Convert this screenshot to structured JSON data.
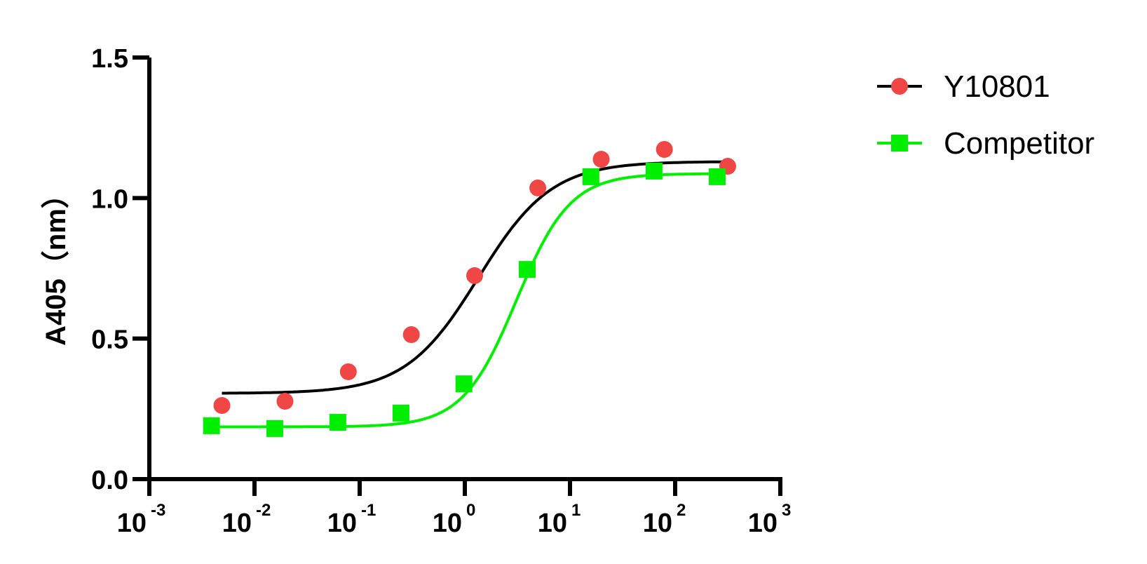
{
  "chart_data": {
    "type": "scatter",
    "subtype": "dose-response (4PL sigmoidal fit)",
    "title": "",
    "xlabel": "",
    "ylabel": "A405（nm）",
    "xscale": "log",
    "xlim": [
      0.001,
      1000
    ],
    "ylim": [
      0,
      1.5
    ],
    "x_ticks": [
      {
        "base": "10",
        "exp": "-3",
        "value": 0.001
      },
      {
        "base": "10",
        "exp": "-2",
        "value": 0.01
      },
      {
        "base": "10",
        "exp": "-1",
        "value": 0.1
      },
      {
        "base": "10",
        "exp": "0",
        "value": 1
      },
      {
        "base": "10",
        "exp": "1",
        "value": 10
      },
      {
        "base": "10",
        "exp": "2",
        "value": 100
      },
      {
        "base": "10",
        "exp": "3",
        "value": 1000
      }
    ],
    "y_ticks": [
      {
        "label": "0.0",
        "value": 0.0
      },
      {
        "label": "0.5",
        "value": 0.5
      },
      {
        "label": "1.0",
        "value": 1.0
      },
      {
        "label": "1.5",
        "value": 1.5
      }
    ],
    "grid": false,
    "legend_position": "top-right outside",
    "series": [
      {
        "name": "Y10801",
        "marker": "circle",
        "marker_color": "#f04646",
        "line_color": "#000000",
        "x": [
          0.0049,
          0.0195,
          0.078,
          0.31,
          1.24,
          4.94,
          19.8,
          79,
          316
        ],
        "y": [
          0.262,
          0.277,
          0.382,
          0.514,
          0.724,
          1.036,
          1.138,
          1.173,
          1.113
        ],
        "fit": {
          "bottom": 0.305,
          "top": 1.13,
          "ec50": 1.35,
          "hill": 1.25
        }
      },
      {
        "name": "Competitor",
        "marker": "square",
        "marker_color": "#00ee00",
        "line_color": "#00ee00",
        "x": [
          0.0039,
          0.0156,
          0.062,
          0.247,
          0.98,
          3.92,
          15.8,
          63,
          251
        ],
        "y": [
          0.19,
          0.18,
          0.202,
          0.235,
          0.339,
          0.746,
          1.076,
          1.096,
          1.076
        ],
        "fit": {
          "bottom": 0.186,
          "top": 1.087,
          "ec50": 3.1,
          "hill": 1.7
        }
      }
    ]
  },
  "legend": {
    "items": [
      {
        "label": "Y10801"
      },
      {
        "label": "Competitor"
      }
    ]
  }
}
